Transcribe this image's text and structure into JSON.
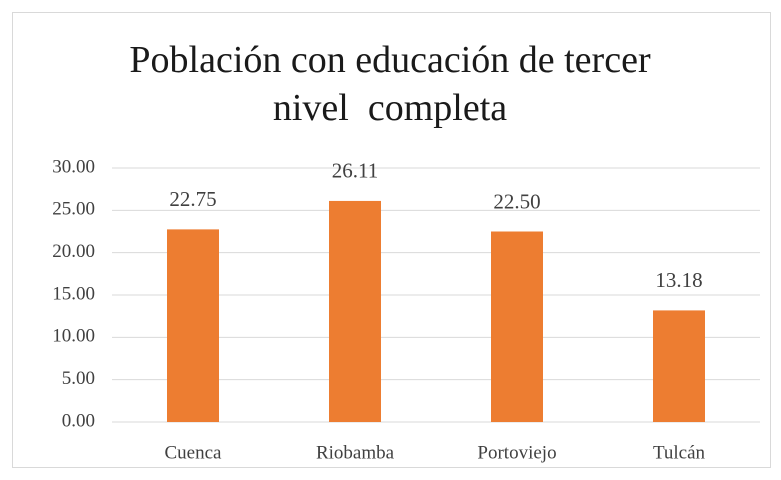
{
  "chart_data": {
    "type": "bar",
    "title": "Población con educación de tercer nivel  completa",
    "categories": [
      "Cuenca",
      "Riobamba",
      "Portoviejo",
      "Tulcán"
    ],
    "values": [
      22.75,
      26.11,
      22.5,
      13.18
    ],
    "value_labels": [
      "22.75",
      "26.11",
      "22.50",
      "13.18"
    ],
    "color": "#ed7d31",
    "ylim": [
      0,
      30
    ],
    "yticks": [
      {
        "value": 0,
        "label": "0.00"
      },
      {
        "value": 5,
        "label": "5.00"
      },
      {
        "value": 10,
        "label": "10.00"
      },
      {
        "value": 15,
        "label": "15.00"
      },
      {
        "value": 20,
        "label": "20.00"
      },
      {
        "value": 25,
        "label": "25.00"
      },
      {
        "value": 30,
        "label": "30.00"
      }
    ],
    "grid": true
  }
}
